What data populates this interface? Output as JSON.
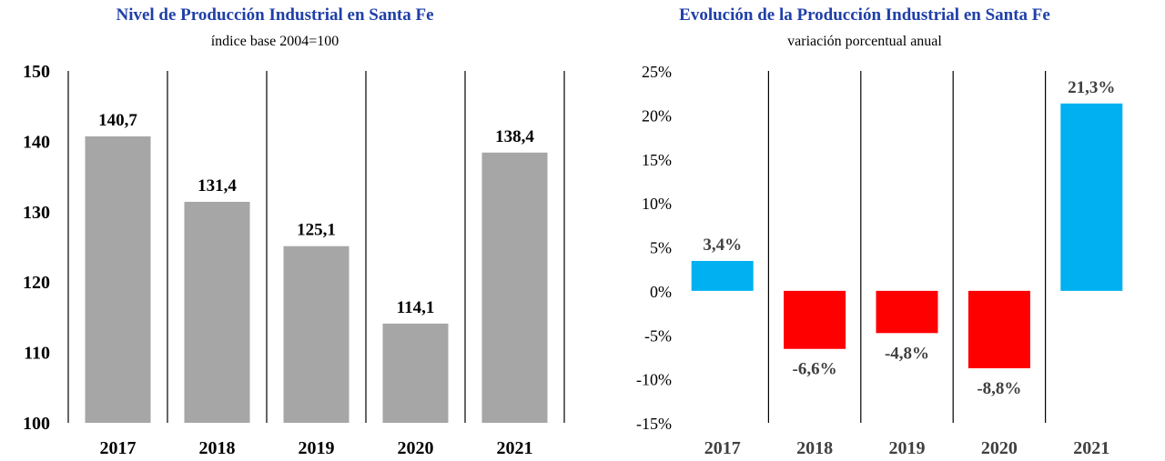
{
  "chart_data": [
    {
      "type": "bar",
      "title": "Nivel de Producción Industrial en Santa Fe",
      "subtitle": "índice base 2004=100",
      "categories": [
        "2017",
        "2018",
        "2019",
        "2020",
        "2021"
      ],
      "values": [
        140.7,
        131.4,
        125.1,
        114.1,
        138.4
      ],
      "data_labels": [
        "140,7",
        "131,4",
        "125,1",
        "114,1",
        "138,4"
      ],
      "ylim": [
        100,
        150
      ],
      "yticks": [
        "100",
        "110",
        "120",
        "130",
        "140",
        "150"
      ],
      "grid": false,
      "colors": {
        "bar": "#a6a6a6"
      }
    },
    {
      "type": "bar",
      "title": "Evolución de la Producción Industrial en Santa Fe",
      "subtitle": "variación porcentual anual",
      "categories": [
        "2017",
        "2018",
        "2019",
        "2020",
        "2021"
      ],
      "values": [
        3.4,
        -6.6,
        -4.8,
        -8.8,
        21.3
      ],
      "data_labels": [
        "3,4%",
        "-6,6%",
        "-4,8%",
        "-8,8%",
        "21,3%"
      ],
      "ylim": [
        -15,
        25
      ],
      "yticks": [
        "-15%",
        "-10%",
        "-5%",
        "0%",
        "5%",
        "10%",
        "15%",
        "20%",
        "25%"
      ],
      "grid": false,
      "colors": {
        "positive": "#00b0f0",
        "negative": "#ff0000"
      }
    }
  ]
}
